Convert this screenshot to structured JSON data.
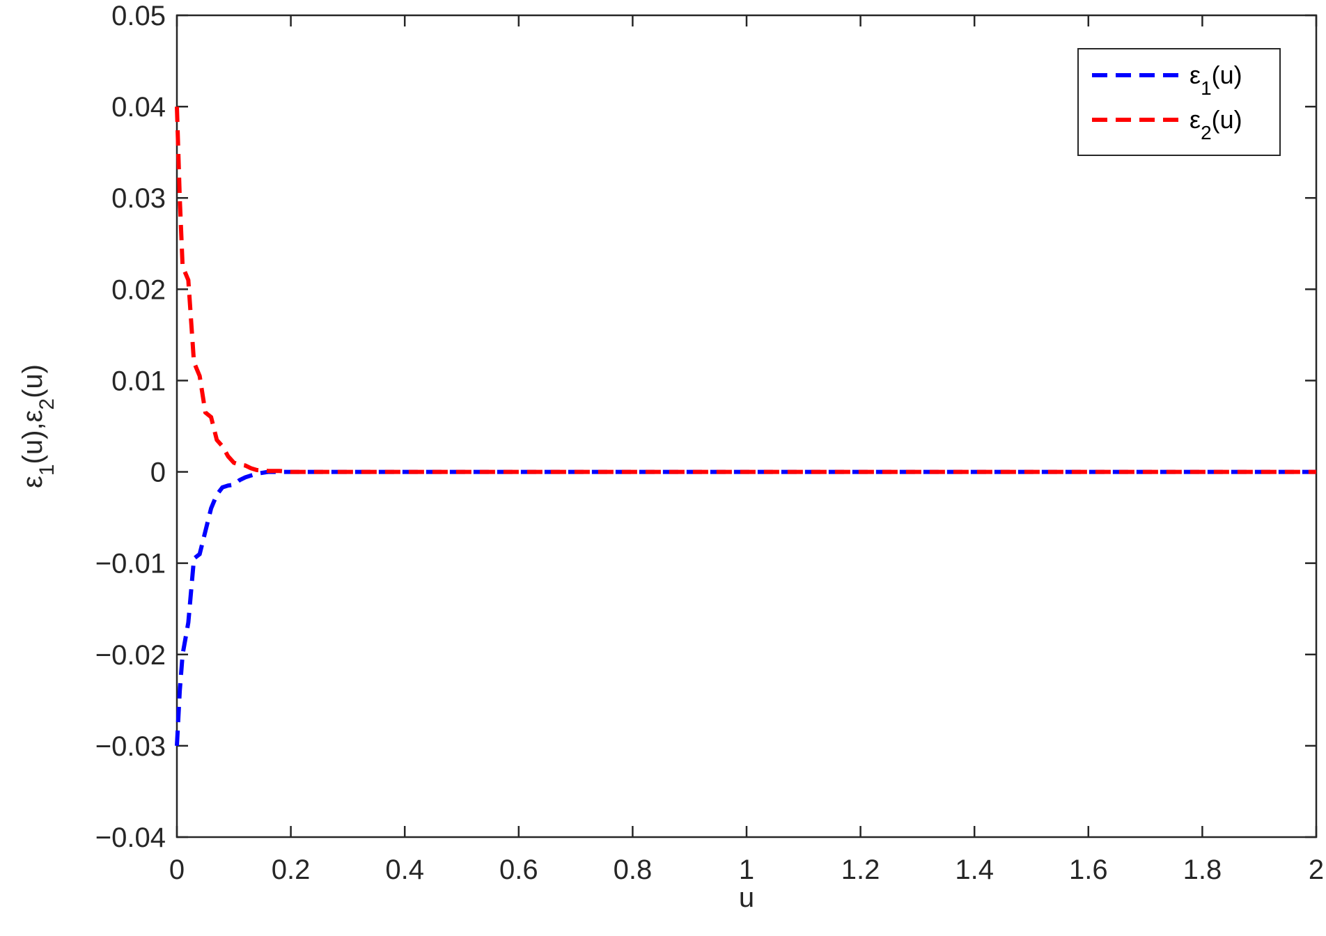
{
  "chart_data": {
    "type": "line",
    "xlabel": "u",
    "ylabel": {
      "segments": [
        {
          "text": "ε",
          "kind": "normal"
        },
        {
          "text": "1",
          "kind": "sub"
        },
        {
          "text": "(u),",
          "kind": "normal"
        },
        {
          "text": "ε",
          "kind": "normal"
        },
        {
          "text": "2",
          "kind": "sub"
        },
        {
          "text": "(u)",
          "kind": "normal"
        }
      ]
    },
    "xlim": [
      0,
      2
    ],
    "ylim": [
      -0.04,
      0.05
    ],
    "xticks": [
      0,
      0.2,
      0.4,
      0.6,
      0.8,
      1,
      1.2,
      1.4,
      1.6,
      1.8,
      2
    ],
    "xtick_labels": [
      "0",
      "0.2",
      "0.4",
      "0.6",
      "0.8",
      "1",
      "1.2",
      "1.4",
      "1.6",
      "1.8",
      "2"
    ],
    "yticks": [
      0.05,
      0.04,
      0.03,
      0.02,
      0.01,
      0,
      -0.01,
      -0.02,
      -0.03,
      -0.04
    ],
    "ytick_labels": [
      "0.05",
      "0.04",
      "0.03",
      "0.02",
      "0.01",
      "0",
      "−0.01",
      "−0.02",
      "−0.03",
      "−0.04"
    ],
    "grid": false,
    "legend_position": "top-right",
    "series": [
      {
        "name_symbol": "ε",
        "name_sub": "1",
        "name_suffix": "(u)",
        "color": "#0000ff",
        "line_style": "dashed",
        "x": [
          0,
          0.005,
          0.01,
          0.02,
          0.03,
          0.04,
          0.05,
          0.06,
          0.07,
          0.08,
          0.09,
          0.1,
          0.11,
          0.12,
          0.13,
          0.14,
          0.16,
          0.18,
          0.2,
          0.3,
          0.5,
          0.8,
          1.0,
          1.5,
          2.0
        ],
        "y": [
          -0.03,
          -0.024,
          -0.02,
          -0.0165,
          -0.0095,
          -0.009,
          -0.0065,
          -0.004,
          -0.0025,
          -0.0017,
          -0.0015,
          -0.0014,
          -0.0009,
          -0.0006,
          -0.0004,
          -0.0002,
          0,
          0,
          0,
          0,
          0,
          0,
          0,
          0,
          0
        ]
      },
      {
        "name_symbol": "ε",
        "name_sub": "2",
        "name_suffix": "(u)",
        "color": "#ff0000",
        "line_style": "dashed",
        "x": [
          0,
          0.005,
          0.01,
          0.02,
          0.03,
          0.04,
          0.05,
          0.06,
          0.07,
          0.08,
          0.09,
          0.1,
          0.11,
          0.12,
          0.13,
          0.14,
          0.16,
          0.18,
          0.2,
          0.3,
          0.5,
          0.8,
          1.0,
          1.5,
          2.0
        ],
        "y": [
          0.04,
          0.03,
          0.0225,
          0.021,
          0.012,
          0.0105,
          0.0065,
          0.006,
          0.0035,
          0.0028,
          0.0017,
          0.001,
          0.0008,
          0.0007,
          0.0004,
          0.0002,
          0.0001,
          0.0001,
          0,
          0,
          0,
          0,
          0,
          0,
          0
        ]
      }
    ]
  }
}
